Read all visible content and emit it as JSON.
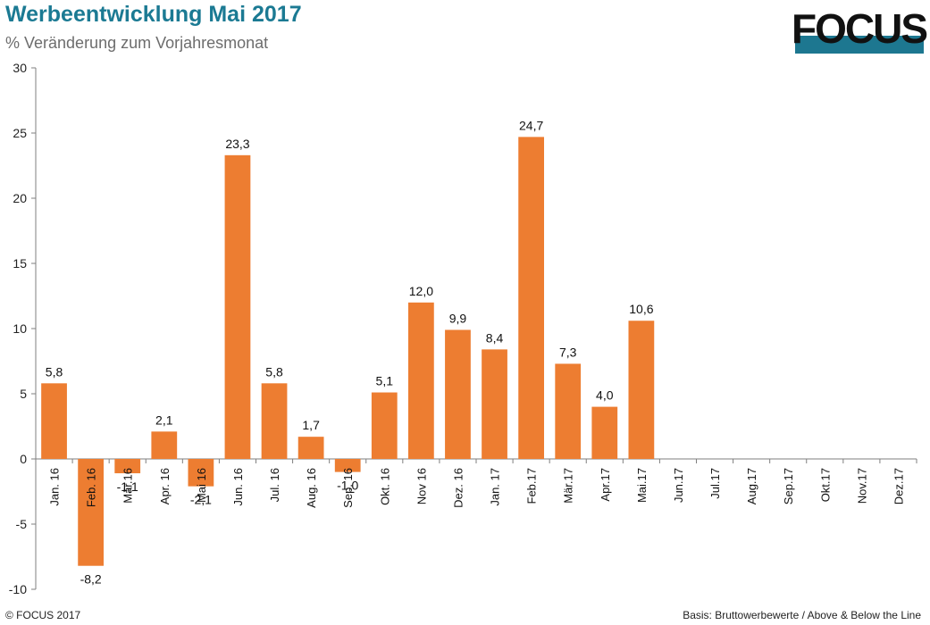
{
  "header": {
    "title": "Werbeentwicklung Mai 2017",
    "subtitle": "% Veränderung zum Vorjahresmonat"
  },
  "logo": {
    "text": "FOCUS",
    "band_color": "#1d7790"
  },
  "footer": {
    "left": "© FOCUS 2017",
    "right": "Basis: Bruttowerbewerte / Above & Below the Line"
  },
  "chart_data": {
    "type": "bar",
    "title": "Werbeentwicklung Mai 2017",
    "subtitle": "% Veränderung zum Vorjahresmonat",
    "categories": [
      "Jan. 16",
      "Feb. 16",
      "Mär.16",
      "Apr. 16",
      "Mai 16",
      "Jun. 16",
      "Jul. 16",
      "Aug. 16",
      "Sep. 16",
      "Okt. 16",
      "Nov 16",
      "Dez. 16",
      "Jan. 17",
      "Feb.17",
      "Mär.17",
      "Apr.17",
      "Mai.17",
      "Jun.17",
      "Jul.17",
      "Aug.17",
      "Sep.17",
      "Okt.17",
      "Nov.17",
      "Dez.17"
    ],
    "values": [
      5.8,
      -8.2,
      -1.1,
      2.1,
      -2.1,
      23.3,
      5.8,
      1.7,
      -1.0,
      5.1,
      12.0,
      9.9,
      8.4,
      24.7,
      7.3,
      4.0,
      10.6,
      null,
      null,
      null,
      null,
      null,
      null,
      null
    ],
    "data_labels": [
      "5,8",
      "-8,2",
      "-1,1",
      "2,1",
      "-2,1",
      "23,3",
      "5,8",
      "1,7",
      "-1,0",
      "5,1",
      "12,0",
      "9,9",
      "8,4",
      "24,7",
      "7,3",
      "4,0",
      "10,6",
      "",
      "",
      "",
      "",
      "",
      "",
      ""
    ],
    "ylim": [
      -10,
      30
    ],
    "yticks": [
      -10,
      -5,
      0,
      5,
      10,
      15,
      20,
      25,
      30
    ],
    "ytick_labels": [
      "-10",
      "-5",
      "0",
      "5",
      "10",
      "15",
      "20",
      "25",
      "30"
    ],
    "bar_color": "#ed7d31",
    "grid": false
  }
}
